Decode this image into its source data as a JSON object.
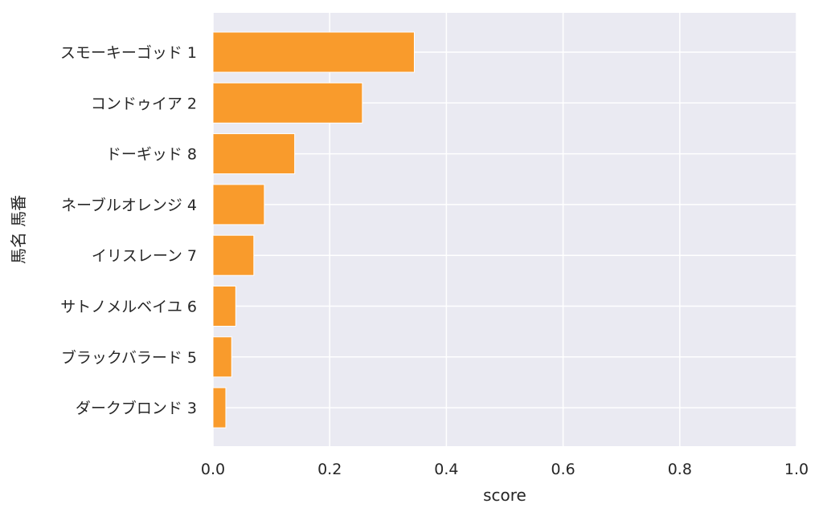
{
  "chart_data": {
    "type": "bar",
    "orientation": "horizontal",
    "categories": [
      "スモーキーゴッド 1",
      "コンドゥイア 2",
      "ドーギッド 8",
      "ネーブルオレンジ 4",
      "イリスレーン 7",
      "サトノメルベイユ 6",
      "ブラックバラード 5",
      "ダークブロンド 3"
    ],
    "values": [
      0.345,
      0.256,
      0.14,
      0.088,
      0.07,
      0.039,
      0.032,
      0.022
    ],
    "xlabel": "score",
    "ylabel": "馬名 馬番",
    "xlim": [
      0,
      1
    ],
    "xticks": [
      0.0,
      0.2,
      0.4,
      0.6,
      0.8,
      1.0
    ],
    "xtick_labels": [
      "0.0",
      "0.2",
      "0.4",
      "0.6",
      "0.8",
      "1.0"
    ],
    "grid": true,
    "bar_color": "#f99b2c",
    "bar_edge_color": "#ffffff",
    "plot_background": "#eaeaf2",
    "grid_color": "#ffffff"
  }
}
